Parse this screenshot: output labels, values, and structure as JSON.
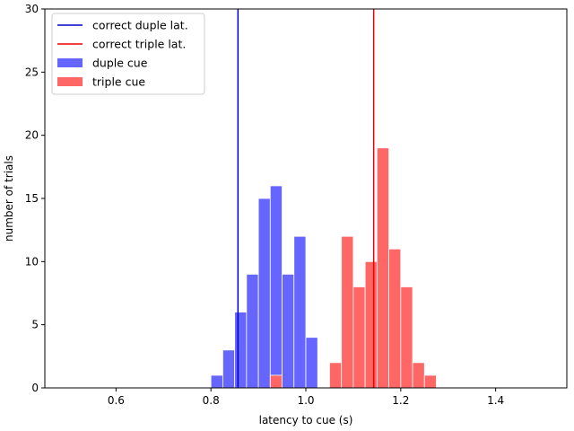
{
  "chart_data": {
    "type": "bar",
    "title": "",
    "xlabel": "latency to cue (s)",
    "ylabel": "number of trials",
    "xlim": [
      0.45,
      1.55
    ],
    "ylim": [
      0,
      30
    ],
    "xticks": [
      0.6,
      0.8,
      1.0,
      1.2,
      1.4
    ],
    "xtick_labels": [
      "0.6",
      "0.8",
      "1.0",
      "1.2",
      "1.4"
    ],
    "yticks": [
      0,
      5,
      10,
      15,
      20,
      25,
      30
    ],
    "ytick_labels": [
      "0",
      "5",
      "10",
      "15",
      "20",
      "25",
      "30"
    ],
    "grid": false,
    "legend_position": "top-left",
    "series": [
      {
        "name": "duple cue",
        "color": "#6666ff",
        "bins": [
          {
            "x0": 0.8,
            "x1": 0.825,
            "count": 1
          },
          {
            "x0": 0.825,
            "x1": 0.85,
            "count": 3
          },
          {
            "x0": 0.85,
            "x1": 0.875,
            "count": 6
          },
          {
            "x0": 0.875,
            "x1": 0.9,
            "count": 9
          },
          {
            "x0": 0.9,
            "x1": 0.925,
            "count": 15
          },
          {
            "x0": 0.925,
            "x1": 0.95,
            "count": 16
          },
          {
            "x0": 0.95,
            "x1": 0.975,
            "count": 9
          },
          {
            "x0": 0.975,
            "x1": 1.0,
            "count": 12
          },
          {
            "x0": 1.0,
            "x1": 1.025,
            "count": 4
          }
        ]
      },
      {
        "name": "triple cue",
        "color": "#ff6666",
        "bins": [
          {
            "x0": 0.925,
            "x1": 0.95,
            "count": 1
          },
          {
            "x0": 1.05,
            "x1": 1.075,
            "count": 2
          },
          {
            "x0": 1.075,
            "x1": 1.1,
            "count": 12
          },
          {
            "x0": 1.1,
            "x1": 1.125,
            "count": 8
          },
          {
            "x0": 1.125,
            "x1": 1.15,
            "count": 10
          },
          {
            "x0": 1.15,
            "x1": 1.175,
            "count": 19
          },
          {
            "x0": 1.175,
            "x1": 1.2,
            "count": 11
          },
          {
            "x0": 1.2,
            "x1": 1.225,
            "count": 8
          },
          {
            "x0": 1.225,
            "x1": 1.25,
            "count": 2
          },
          {
            "x0": 1.25,
            "x1": 1.275,
            "count": 1
          }
        ]
      }
    ],
    "vlines": [
      {
        "name": "correct duple lat.",
        "x": 0.857,
        "color": "#0000cc"
      },
      {
        "name": "correct triple lat.",
        "x": 1.143,
        "color": "#ee0000"
      }
    ]
  }
}
